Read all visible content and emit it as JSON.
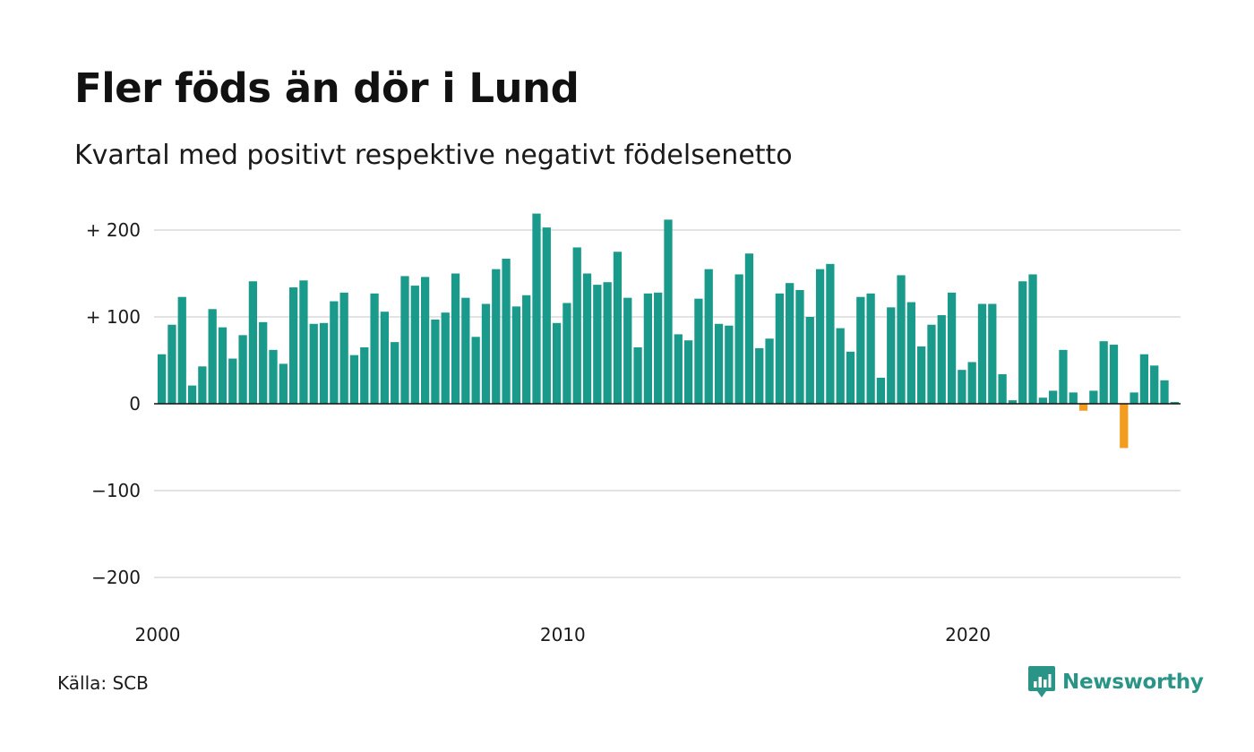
{
  "title": "Fler föds än dör i Lund",
  "subtitle": "Kvartal med positivt respektive negativt födelsenetto",
  "source": "Källa: SCB",
  "brand": {
    "name": "Newsworthy",
    "icon": "newsworthy-logo-icon"
  },
  "colors": {
    "positive": "#1a9a8a",
    "negative": "#f39c1f",
    "grid": "#e3e3e3",
    "zero_line": "#111111"
  },
  "chart_data": {
    "type": "bar",
    "ylim": [
      -200,
      200
    ],
    "y_ticks": [
      200,
      100,
      0,
      -100,
      -200
    ],
    "y_tick_labels": [
      "+ 200",
      "+ 100",
      "0",
      "−100",
      "−200"
    ],
    "x_ticks": [
      2000,
      2010,
      2020
    ],
    "x_tick_labels": [
      "2000",
      "2010",
      "2020"
    ],
    "grid": true,
    "x_start": "2000 Q1",
    "frequency": "quarterly",
    "values": [
      57,
      91,
      123,
      21,
      43,
      109,
      88,
      52,
      79,
      141,
      94,
      62,
      46,
      134,
      142,
      92,
      93,
      118,
      128,
      56,
      65,
      127,
      106,
      71,
      147,
      136,
      146,
      97,
      105,
      150,
      122,
      77,
      115,
      155,
      167,
      112,
      125,
      219,
      203,
      93,
      116,
      180,
      150,
      137,
      140,
      175,
      122,
      65,
      127,
      128,
      212,
      80,
      73,
      121,
      155,
      92,
      90,
      149,
      173,
      64,
      75,
      127,
      139,
      131,
      100,
      155,
      161,
      87,
      60,
      123,
      127,
      30,
      111,
      148,
      117,
      66,
      91,
      102,
      128,
      39,
      48,
      115,
      115,
      34,
      4,
      141,
      149,
      7,
      15,
      62,
      13,
      -8,
      15,
      72,
      68,
      -51,
      13,
      57,
      44,
      27,
      2
    ]
  }
}
